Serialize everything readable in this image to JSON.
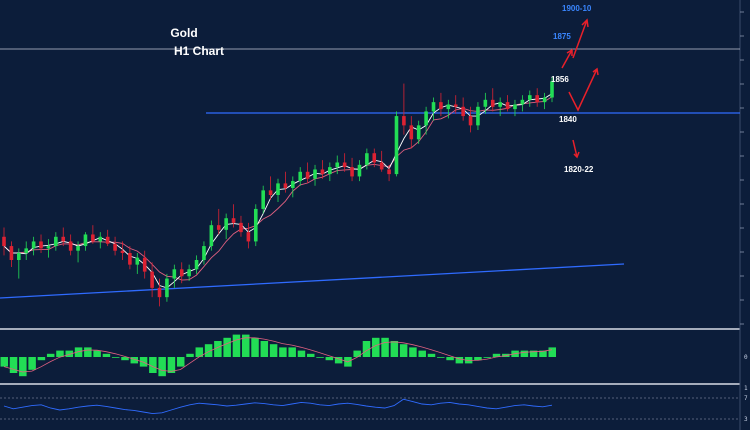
{
  "chart_data": {
    "type": "candlestick",
    "title": "Gold",
    "subtitle": "H1 Chart",
    "colors": {
      "background": "#0c1d3a",
      "bull": "#22dd55",
      "bear": "#dd2233",
      "ma_fast": "#ffffff",
      "ma_slow": "#e06080",
      "trendline": "#2f6bff",
      "level_line": "#c0c6d6",
      "arrows": "#e8202a",
      "target_label": "#3a86ff",
      "label": "#ffffff"
    },
    "price_ylim": [
      1770,
      1910
    ],
    "candles": [
      [
        1808,
        1812,
        1800,
        1804
      ],
      [
        1804,
        1806,
        1795,
        1798
      ],
      [
        1798,
        1803,
        1790,
        1801
      ],
      [
        1801,
        1806,
        1798,
        1803
      ],
      [
        1803,
        1808,
        1800,
        1806
      ],
      [
        1806,
        1809,
        1801,
        1803
      ],
      [
        1803,
        1807,
        1799,
        1804
      ],
      [
        1804,
        1810,
        1802,
        1808
      ],
      [
        1808,
        1812,
        1804,
        1806
      ],
      [
        1806,
        1809,
        1800,
        1802
      ],
      [
        1802,
        1806,
        1797,
        1804
      ],
      [
        1804,
        1810,
        1802,
        1809
      ],
      [
        1809,
        1813,
        1805,
        1806
      ],
      [
        1806,
        1810,
        1803,
        1808
      ],
      [
        1808,
        1811,
        1804,
        1805
      ],
      [
        1805,
        1808,
        1800,
        1802
      ],
      [
        1802,
        1806,
        1798,
        1801
      ],
      [
        1801,
        1804,
        1794,
        1796
      ],
      [
        1796,
        1801,
        1792,
        1799
      ],
      [
        1799,
        1802,
        1790,
        1793
      ],
      [
        1793,
        1797,
        1782,
        1786
      ],
      [
        1786,
        1790,
        1778,
        1782
      ],
      [
        1782,
        1792,
        1780,
        1790
      ],
      [
        1790,
        1796,
        1786,
        1794
      ],
      [
        1794,
        1797,
        1788,
        1791
      ],
      [
        1791,
        1796,
        1789,
        1794
      ],
      [
        1794,
        1800,
        1792,
        1798
      ],
      [
        1798,
        1806,
        1796,
        1804
      ],
      [
        1804,
        1815,
        1802,
        1813
      ],
      [
        1813,
        1820,
        1809,
        1811
      ],
      [
        1811,
        1818,
        1807,
        1816
      ],
      [
        1816,
        1822,
        1812,
        1814
      ],
      [
        1814,
        1817,
        1808,
        1810
      ],
      [
        1810,
        1814,
        1803,
        1806
      ],
      [
        1806,
        1822,
        1804,
        1820
      ],
      [
        1820,
        1830,
        1818,
        1828
      ],
      [
        1828,
        1834,
        1824,
        1826
      ],
      [
        1826,
        1833,
        1823,
        1831
      ],
      [
        1831,
        1836,
        1827,
        1829
      ],
      [
        1829,
        1834,
        1825,
        1832
      ],
      [
        1832,
        1838,
        1830,
        1836
      ],
      [
        1836,
        1840,
        1831,
        1833
      ],
      [
        1833,
        1839,
        1830,
        1837
      ],
      [
        1837,
        1841,
        1833,
        1835
      ],
      [
        1835,
        1840,
        1832,
        1838
      ],
      [
        1838,
        1843,
        1835,
        1840
      ],
      [
        1840,
        1844,
        1836,
        1838
      ],
      [
        1838,
        1842,
        1832,
        1834
      ],
      [
        1834,
        1841,
        1832,
        1839
      ],
      [
        1839,
        1846,
        1837,
        1844
      ],
      [
        1844,
        1846,
        1838,
        1840
      ],
      [
        1840,
        1845,
        1836,
        1837
      ],
      [
        1837,
        1839,
        1832,
        1835
      ],
      [
        1835,
        1862,
        1834,
        1860
      ],
      [
        1860,
        1874,
        1852,
        1856
      ],
      [
        1856,
        1860,
        1846,
        1850
      ],
      [
        1850,
        1858,
        1848,
        1856
      ],
      [
        1856,
        1864,
        1852,
        1862
      ],
      [
        1862,
        1868,
        1858,
        1866
      ],
      [
        1866,
        1870,
        1860,
        1863
      ],
      [
        1863,
        1867,
        1859,
        1865
      ],
      [
        1865,
        1869,
        1861,
        1864
      ],
      [
        1864,
        1868,
        1858,
        1860
      ],
      [
        1860,
        1864,
        1853,
        1856
      ],
      [
        1856,
        1866,
        1854,
        1864
      ],
      [
        1864,
        1870,
        1861,
        1867
      ],
      [
        1867,
        1872,
        1862,
        1864
      ],
      [
        1864,
        1868,
        1860,
        1866
      ],
      [
        1866,
        1869,
        1862,
        1863
      ],
      [
        1863,
        1867,
        1860,
        1865
      ],
      [
        1865,
        1869,
        1862,
        1867
      ],
      [
        1867,
        1871,
        1864,
        1869
      ],
      [
        1869,
        1872,
        1864,
        1866
      ],
      [
        1866,
        1870,
        1863,
        1868
      ],
      [
        1868,
        1877,
        1866,
        1875
      ]
    ],
    "macd_histogram": [
      -3,
      -5,
      -6,
      -4,
      -1,
      1,
      2,
      2,
      3,
      3,
      2,
      1,
      0,
      -1,
      -2,
      -3,
      -5,
      -6,
      -5,
      -3,
      1,
      3,
      4,
      5,
      6,
      7,
      7,
      6,
      5,
      4,
      3,
      3,
      2,
      1,
      0,
      -1,
      -2,
      -3,
      2,
      5,
      6,
      6,
      5,
      4,
      3,
      2,
      1,
      0,
      -1,
      -2,
      -2,
      -1,
      0,
      1,
      1,
      2,
      2,
      2,
      2,
      3
    ],
    "rsi": [
      55,
      48,
      52,
      56,
      58,
      50,
      45,
      48,
      52,
      55,
      57,
      54,
      50,
      46,
      44,
      40,
      36,
      38,
      45,
      52,
      58,
      62,
      60,
      58,
      55,
      57,
      60,
      63,
      61,
      58,
      56,
      60,
      64,
      62,
      58,
      56,
      60,
      62,
      59,
      55,
      52,
      50,
      56,
      72,
      66,
      60,
      58,
      62,
      64,
      60,
      58,
      54,
      50,
      48,
      52,
      56,
      58,
      55,
      53,
      57
    ],
    "levels": {
      "resistance": "1875",
      "target": "1900-10",
      "support_1": "1856",
      "support_2": "1840",
      "target_down": "1820-22"
    },
    "tick_labels": {
      "macd": [
        "0"
      ],
      "rsi": [
        "1",
        "7",
        "3"
      ]
    }
  }
}
